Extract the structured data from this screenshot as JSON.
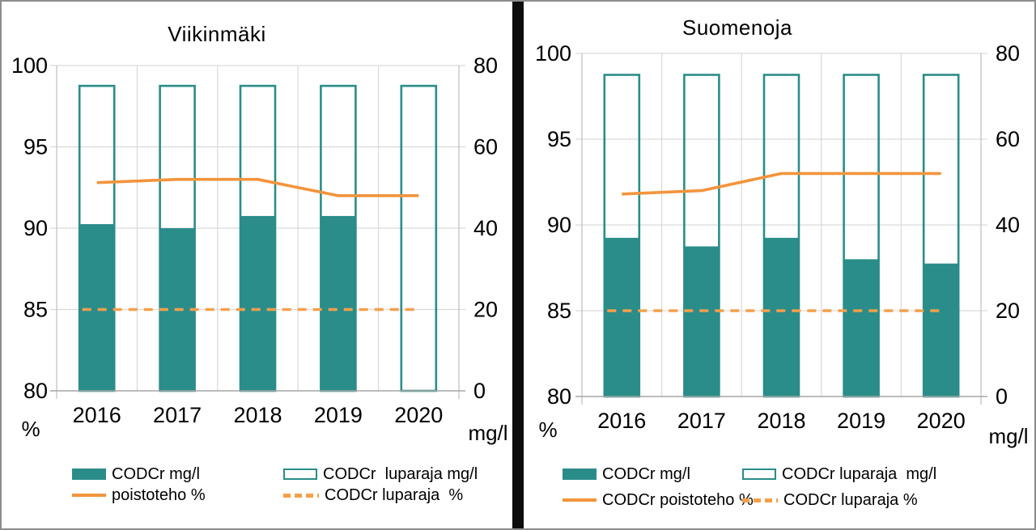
{
  "colors": {
    "teal": "#2A8D89",
    "orange_solid": "#F3943C",
    "orange_dashed": "#F5A04B",
    "grid": "#D9D9D9",
    "axis_line": "#C2C2C2",
    "baseline": "#A6A6A6",
    "text": "#000000",
    "frame": "#8C8C8C",
    "divider": "#0D0D0D"
  },
  "chart_data": [
    {
      "type": "bar",
      "title": "Viikinmäki",
      "categories": [
        "2016",
        "2017",
        "2018",
        "2019",
        "2020"
      ],
      "series": [
        {
          "name": "CODCr mg/l",
          "type": "bar",
          "style": "filled",
          "axis": "right",
          "values": [
            41,
            40,
            43,
            43,
            null
          ]
        },
        {
          "name": "CODCr  luparaja mg/l",
          "type": "bar",
          "style": "outline",
          "axis": "right",
          "values": [
            75,
            75,
            75,
            75,
            75
          ]
        },
        {
          "name": "poistoteho %",
          "type": "line",
          "style": "solid",
          "axis": "left",
          "values": [
            92.8,
            93,
            93,
            92,
            92
          ]
        },
        {
          "name": "CODCr luparaja  %",
          "type": "line",
          "style": "dashed",
          "axis": "left",
          "values": [
            85,
            85,
            85,
            85,
            85
          ]
        }
      ],
      "left_axis": {
        "label": "%",
        "min": 80,
        "max": 100,
        "ticks": [
          80,
          85,
          90,
          95,
          100
        ]
      },
      "right_axis": {
        "label": "mg/l",
        "min": 0,
        "max": 80,
        "ticks": [
          0,
          20,
          40,
          60,
          80
        ]
      },
      "grid": true,
      "legend_position": "bottom"
    },
    {
      "type": "bar",
      "title": "Suomenoja",
      "categories": [
        "2016",
        "2017",
        "2018",
        "2019",
        "2020"
      ],
      "series": [
        {
          "name": "CODCr mg/l",
          "type": "bar",
          "style": "filled",
          "axis": "right",
          "values": [
            37,
            35,
            37,
            32,
            31
          ]
        },
        {
          "name": "CODCr luparaja  mg/l",
          "type": "bar",
          "style": "outline",
          "axis": "right",
          "values": [
            75,
            75,
            75,
            75,
            75
          ]
        },
        {
          "name": "CODCr poistoteho %",
          "type": "line",
          "style": "solid",
          "axis": "left",
          "values": [
            91.8,
            92,
            93,
            93,
            93
          ]
        },
        {
          "name": "CODCr luparaja %",
          "type": "line",
          "style": "dashed",
          "axis": "left",
          "values": [
            85,
            85,
            85,
            85,
            85
          ]
        }
      ],
      "left_axis": {
        "label": "%",
        "min": 80,
        "max": 100,
        "ticks": [
          80,
          85,
          90,
          95,
          100
        ]
      },
      "right_axis": {
        "label": "mg/l",
        "min": 0,
        "max": 80,
        "ticks": [
          0,
          20,
          40,
          60,
          80
        ]
      },
      "grid": true,
      "legend_position": "bottom"
    }
  ]
}
